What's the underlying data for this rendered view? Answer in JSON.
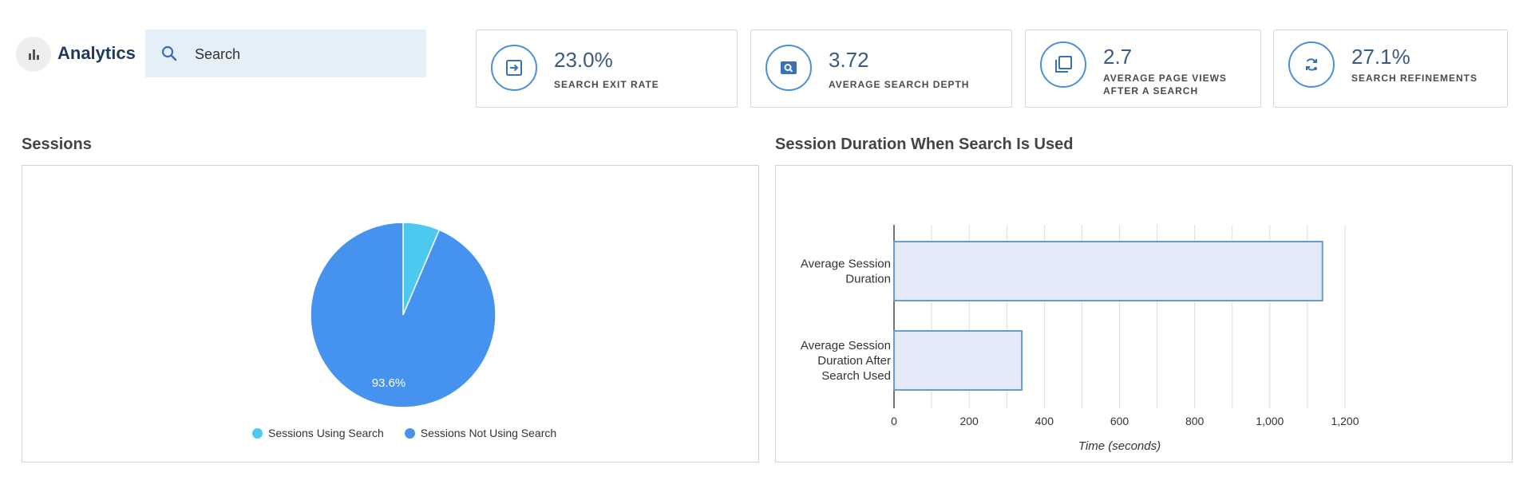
{
  "app": {
    "title": "Analytics",
    "icon": "bar-chart-icon"
  },
  "search": {
    "placeholder": "Search",
    "icon": "search-icon"
  },
  "kpis": [
    {
      "value": "23.0%",
      "label": "SEARCH EXIT RATE",
      "icon": "exit-icon"
    },
    {
      "value": "3.72",
      "label": "AVERAGE SEARCH DEPTH",
      "icon": "search-depth-icon"
    },
    {
      "value": "2.7",
      "label": "AVERAGE PAGE VIEWS AFTER A SEARCH",
      "icon": "pages-icon"
    },
    {
      "value": "27.1%",
      "label": "SEARCH REFINEMENTS",
      "icon": "refresh-icon"
    }
  ],
  "sessions": {
    "title": "Sessions",
    "chart_data": {
      "type": "pie",
      "slices": [
        {
          "label": "Sessions Using Search",
          "value": 6.4,
          "color": "#4dc8ef"
        },
        {
          "label": "Sessions Not Using Search",
          "value": 93.6,
          "color": "#4693ef"
        }
      ],
      "data_labels": [
        "93.6%"
      ],
      "legend_position": "bottom"
    }
  },
  "duration": {
    "title": "Session Duration When Search Is Used",
    "chart_data": {
      "type": "bar",
      "orientation": "horizontal",
      "categories": [
        "Average Session Duration",
        "Average Session Duration After Search Used"
      ],
      "category_lines": [
        [
          "Average Session",
          "Duration"
        ],
        [
          "Average Session",
          "Duration After",
          "Search Used"
        ]
      ],
      "values": [
        1140,
        340
      ],
      "xlabel": "Time (seconds)",
      "xlim": [
        0,
        1200
      ],
      "xticks": [
        "0",
        "200",
        "400",
        "600",
        "800",
        "1,000",
        "1,200"
      ],
      "grid": true,
      "bar_fill": "#e3e9f6",
      "bar_stroke": "#6b9bd2"
    }
  }
}
